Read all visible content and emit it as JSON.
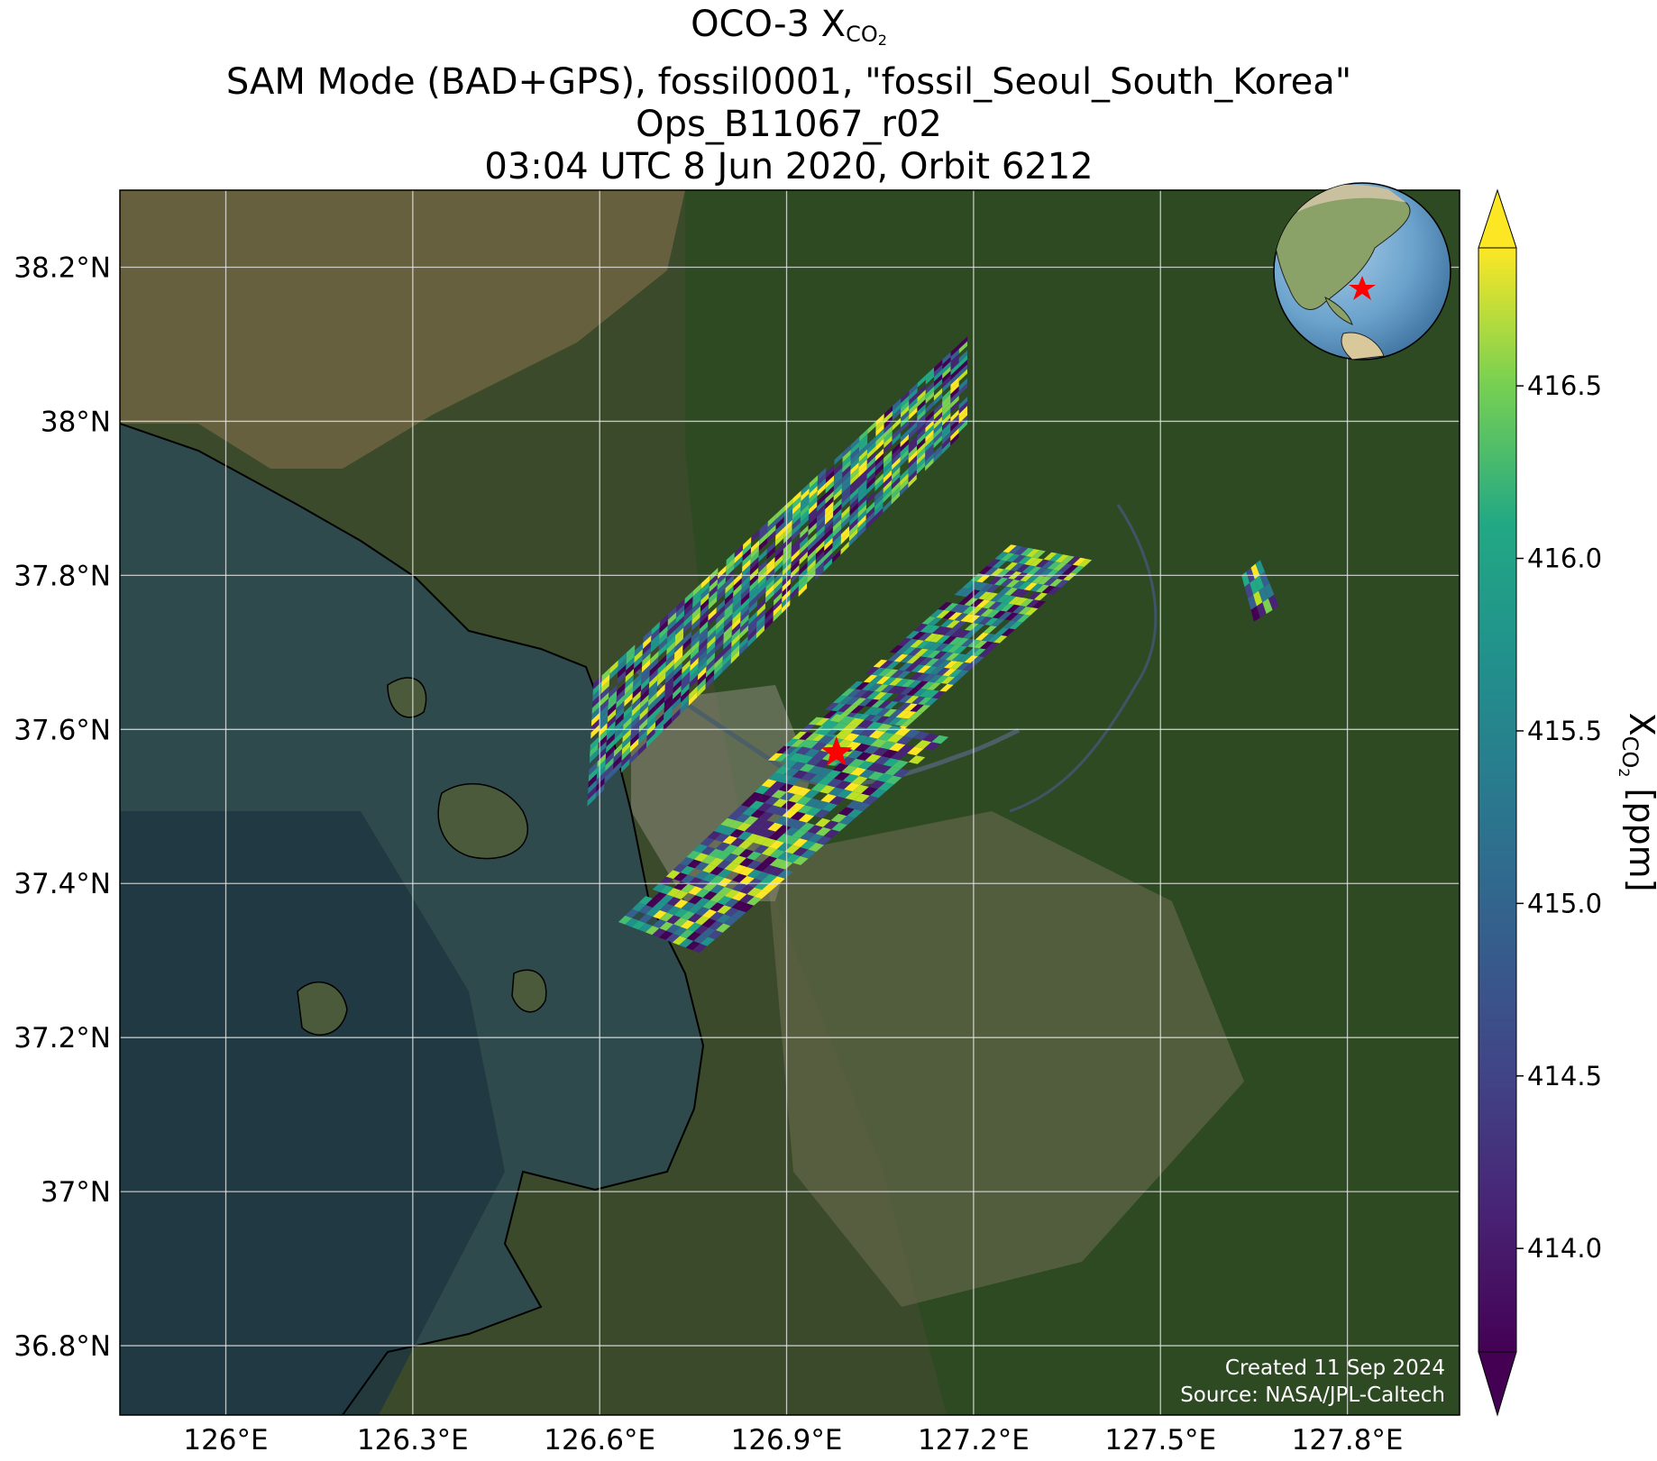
{
  "title": {
    "line1_prefix": "OCO-3 X",
    "line1_sub": "CO",
    "line1_sub2": "2",
    "line2": "SAM Mode (BAD+GPS), fossil0001, \"fossil_Seoul_South_Korea\"",
    "line3": "Ops_B11067_r02",
    "line4": "03:04 UTC 8 Jun 2020, Orbit 6212"
  },
  "map": {
    "lon_range": [
      125.83,
      127.98
    ],
    "lat_range": [
      36.71,
      38.3
    ],
    "lon_ticks": [
      {
        "value": 126.0,
        "label": "126°E"
      },
      {
        "value": 126.3,
        "label": "126.3°E"
      },
      {
        "value": 126.6,
        "label": "126.6°E"
      },
      {
        "value": 126.9,
        "label": "126.9°E"
      },
      {
        "value": 127.2,
        "label": "127.2°E"
      },
      {
        "value": 127.5,
        "label": "127.5°E"
      },
      {
        "value": 127.8,
        "label": "127.8°E"
      }
    ],
    "lat_ticks": [
      {
        "value": 36.8,
        "label": "36.8°N"
      },
      {
        "value": 37.0,
        "label": "37°N"
      },
      {
        "value": 37.2,
        "label": "37.2°N"
      },
      {
        "value": 37.4,
        "label": "37.4°N"
      },
      {
        "value": 37.6,
        "label": "37.6°N"
      },
      {
        "value": 37.8,
        "label": "37.8°N"
      },
      {
        "value": 38.0,
        "label": "38°N"
      },
      {
        "value": 38.2,
        "label": "38.2°N"
      }
    ],
    "target_marker": {
      "name": "fossil_Seoul_South_Korea",
      "lon": 126.98,
      "lat": 37.57,
      "color": "#ff0000"
    },
    "credit_line1": "Created 11 Sep 2024",
    "credit_line2": "Source: NASA/JPL-Caltech",
    "inset_globe": "globe-icon"
  },
  "chart_data": {
    "type": "heatmap",
    "variable": "XCO2",
    "units": "ppm",
    "colormap": "viridis",
    "color_range": [
      413.7,
      416.9
    ],
    "colorbar_ticks": [
      414.0,
      414.5,
      415.0,
      415.5,
      416.0,
      416.5
    ],
    "colorbar_tick_labels": [
      "414.0",
      "414.5",
      "415.0",
      "415.5",
      "416.0",
      "416.5"
    ],
    "colorbar_extend": "both",
    "colorbar_label_prefix": "X",
    "colorbar_label_sub": "CO",
    "colorbar_label_sub2": "2",
    "colorbar_label_suffix": " [ppm]",
    "swaths": [
      {
        "name": "north swath",
        "corners": [
          [
            126.58,
            37.5
          ],
          [
            127.19,
            37.99
          ],
          [
            127.19,
            38.11
          ],
          [
            126.59,
            37.66
          ]
        ],
        "rows": 20,
        "cols": 45
      },
      {
        "name": "central swath",
        "corners": [
          [
            126.87,
            37.56
          ],
          [
            127.26,
            37.84
          ],
          [
            127.39,
            37.82
          ],
          [
            127.02,
            37.55
          ]
        ],
        "rows": 14,
        "cols": 30
      },
      {
        "name": "south swath",
        "corners": [
          [
            126.63,
            37.35
          ],
          [
            126.98,
            37.62
          ],
          [
            127.16,
            37.59
          ],
          [
            126.76,
            37.31
          ]
        ],
        "rows": 12,
        "cols": 32
      },
      {
        "name": "small swath east",
        "corners": [
          [
            127.63,
            37.8
          ],
          [
            127.66,
            37.82
          ],
          [
            127.69,
            37.76
          ],
          [
            127.65,
            37.74
          ]
        ],
        "rows": 4,
        "cols": 4
      }
    ]
  }
}
